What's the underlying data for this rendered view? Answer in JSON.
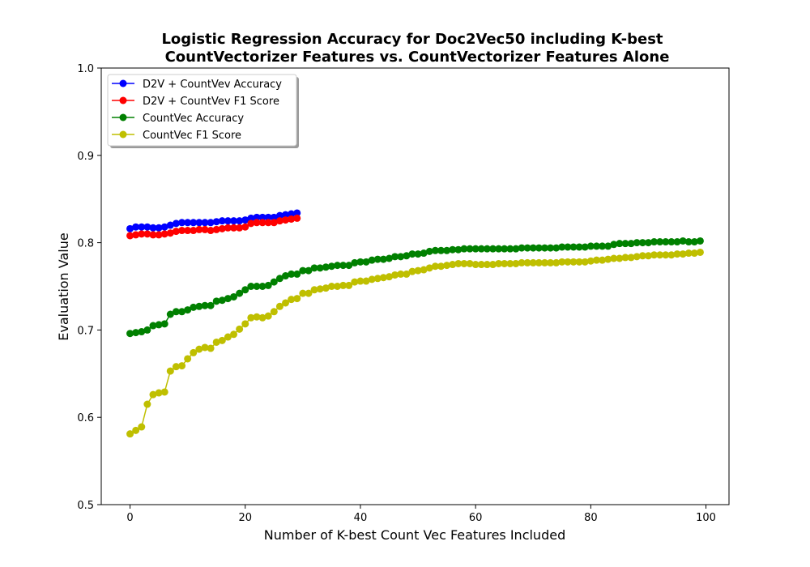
{
  "chart_data": {
    "type": "line",
    "title_line1": "Logistic Regression Accuracy for Doc2Vec50 including K-best",
    "title_line2": "CountVectorizer Features vs. CountVectorizer Features Alone",
    "xlabel": "Number of K-best Count Vec Features Included",
    "ylabel": "Evaluation Value",
    "xlim": [
      -5,
      104
    ],
    "ylim": [
      0.5,
      1.0
    ],
    "x_ticks": [
      0,
      20,
      40,
      60,
      80,
      100
    ],
    "y_ticks": [
      0.5,
      0.6,
      0.7,
      0.8,
      0.9,
      1.0
    ],
    "x_tick_labels": [
      "0",
      "20",
      "40",
      "60",
      "80",
      "100"
    ],
    "y_tick_labels": [
      "0.5",
      "0.6",
      "0.7",
      "0.8",
      "0.9",
      "1.0"
    ],
    "grid": false,
    "legend_position": "top-left",
    "series": [
      {
        "name": "D2V + CountVev Accuracy",
        "color": "#0000ff",
        "x_start": 0,
        "values": [
          0.816,
          0.818,
          0.818,
          0.818,
          0.817,
          0.817,
          0.818,
          0.82,
          0.822,
          0.823,
          0.823,
          0.823,
          0.823,
          0.823,
          0.823,
          0.824,
          0.825,
          0.825,
          0.825,
          0.825,
          0.826,
          0.828,
          0.829,
          0.829,
          0.829,
          0.829,
          0.831,
          0.832,
          0.833,
          0.834
        ]
      },
      {
        "name": "D2V + CountVev F1 Score",
        "color": "#ff0000",
        "x_start": 0,
        "values": [
          0.808,
          0.809,
          0.81,
          0.81,
          0.809,
          0.809,
          0.81,
          0.811,
          0.813,
          0.814,
          0.814,
          0.814,
          0.815,
          0.815,
          0.814,
          0.815,
          0.816,
          0.817,
          0.817,
          0.817,
          0.818,
          0.822,
          0.823,
          0.823,
          0.823,
          0.823,
          0.825,
          0.826,
          0.827,
          0.828
        ]
      },
      {
        "name": "CountVec Accuracy",
        "color": "#008000",
        "x_start": 0,
        "values": [
          0.696,
          0.697,
          0.698,
          0.7,
          0.705,
          0.706,
          0.707,
          0.718,
          0.721,
          0.721,
          0.723,
          0.726,
          0.727,
          0.728,
          0.728,
          0.733,
          0.734,
          0.736,
          0.738,
          0.742,
          0.746,
          0.75,
          0.75,
          0.75,
          0.751,
          0.755,
          0.759,
          0.762,
          0.764,
          0.764,
          0.768,
          0.768,
          0.771,
          0.771,
          0.772,
          0.773,
          0.774,
          0.774,
          0.774,
          0.777,
          0.778,
          0.778,
          0.78,
          0.781,
          0.781,
          0.782,
          0.784,
          0.784,
          0.785,
          0.787,
          0.787,
          0.788,
          0.79,
          0.791,
          0.791,
          0.791,
          0.792,
          0.792,
          0.793,
          0.793,
          0.793,
          0.793,
          0.793,
          0.793,
          0.793,
          0.793,
          0.793,
          0.793,
          0.794,
          0.794,
          0.794,
          0.794,
          0.794,
          0.794,
          0.794,
          0.795,
          0.795,
          0.795,
          0.795,
          0.795,
          0.796,
          0.796,
          0.796,
          0.796,
          0.798,
          0.799,
          0.799,
          0.799,
          0.8,
          0.8,
          0.8,
          0.801,
          0.801,
          0.801,
          0.801,
          0.801,
          0.802,
          0.801,
          0.801,
          0.802
        ]
      },
      {
        "name": "CountVec F1 Score",
        "color": "#bfbf00",
        "x_start": 0,
        "values": [
          0.581,
          0.585,
          0.589,
          0.615,
          0.626,
          0.628,
          0.629,
          0.653,
          0.658,
          0.659,
          0.667,
          0.674,
          0.678,
          0.68,
          0.679,
          0.686,
          0.688,
          0.692,
          0.695,
          0.701,
          0.707,
          0.714,
          0.715,
          0.714,
          0.716,
          0.721,
          0.727,
          0.731,
          0.735,
          0.736,
          0.742,
          0.742,
          0.746,
          0.747,
          0.748,
          0.75,
          0.75,
          0.751,
          0.751,
          0.755,
          0.756,
          0.756,
          0.758,
          0.759,
          0.76,
          0.761,
          0.763,
          0.764,
          0.764,
          0.767,
          0.768,
          0.769,
          0.771,
          0.773,
          0.773,
          0.774,
          0.775,
          0.776,
          0.776,
          0.776,
          0.775,
          0.775,
          0.775,
          0.775,
          0.776,
          0.776,
          0.776,
          0.776,
          0.777,
          0.777,
          0.777,
          0.777,
          0.777,
          0.777,
          0.777,
          0.778,
          0.778,
          0.778,
          0.778,
          0.778,
          0.779,
          0.78,
          0.78,
          0.781,
          0.782,
          0.782,
          0.783,
          0.783,
          0.784,
          0.785,
          0.785,
          0.786,
          0.786,
          0.786,
          0.786,
          0.787,
          0.787,
          0.788,
          0.788,
          0.789
        ]
      }
    ]
  }
}
